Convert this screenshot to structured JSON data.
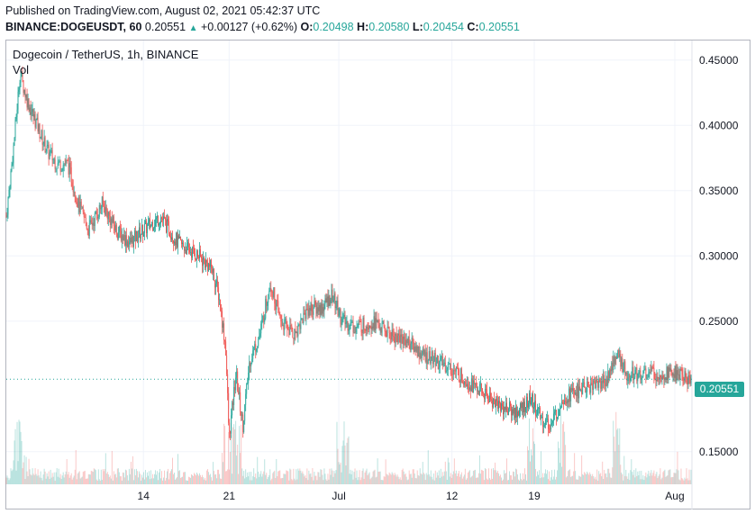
{
  "header": {
    "published": "Published on TradingView.com, August 02, 2021 05:42:37 UTC",
    "symbol": "BINANCE:DOGEUSDT, 60",
    "last": "0.20551",
    "change_icon": "triangle-up-icon",
    "change": "+0.00127 (+0.62%)",
    "o_label": "O:",
    "o_value": "0.20498",
    "h_label": "H:",
    "h_value": "0.20580",
    "l_label": "L:",
    "l_value": "0.20454",
    "c_label": "C:",
    "c_value": "0.20551"
  },
  "legend": {
    "title": "Dogecoin / TetherUS, 1h, BINANCE",
    "vol": "Vol"
  },
  "colors": {
    "up": "#26a69a",
    "down": "#ef5350",
    "grid": "#f0f3fa"
  },
  "chart_data": {
    "type": "candlestick",
    "title": "Dogecoin / TetherUS, 1h, BINANCE",
    "ylim": [
      0.125,
      0.465
    ],
    "y_ticks": [
      "0.45000",
      "0.40000",
      "0.35000",
      "0.30000",
      "0.25000",
      "0.15000"
    ],
    "y_tick_values": [
      0.45,
      0.4,
      0.35,
      0.3,
      0.25,
      0.15
    ],
    "x_ticks": [
      "14",
      "21",
      "Jul",
      "12",
      "19",
      "Aug"
    ],
    "x_tick_index": [
      0.2,
      0.325,
      0.485,
      0.65,
      0.77,
      0.975
    ],
    "last_price": "0.20551",
    "last_price_value": 0.20551,
    "price_path": [
      [
        0.0,
        0.33
      ],
      [
        0.01,
        0.38
      ],
      [
        0.02,
        0.44
      ],
      [
        0.03,
        0.42
      ],
      [
        0.045,
        0.4
      ],
      [
        0.06,
        0.38
      ],
      [
        0.075,
        0.37
      ],
      [
        0.09,
        0.37
      ],
      [
        0.105,
        0.34
      ],
      [
        0.12,
        0.32
      ],
      [
        0.14,
        0.34
      ],
      [
        0.16,
        0.32
      ],
      [
        0.18,
        0.31
      ],
      [
        0.2,
        0.32
      ],
      [
        0.225,
        0.33
      ],
      [
        0.25,
        0.31
      ],
      [
        0.28,
        0.3
      ],
      [
        0.3,
        0.29
      ],
      [
        0.31,
        0.27
      ],
      [
        0.32,
        0.23
      ],
      [
        0.325,
        0.16
      ],
      [
        0.335,
        0.21
      ],
      [
        0.345,
        0.17
      ],
      [
        0.355,
        0.22
      ],
      [
        0.37,
        0.24
      ],
      [
        0.385,
        0.28
      ],
      [
        0.4,
        0.25
      ],
      [
        0.42,
        0.24
      ],
      [
        0.44,
        0.26
      ],
      [
        0.46,
        0.26
      ],
      [
        0.475,
        0.27
      ],
      [
        0.49,
        0.25
      ],
      [
        0.51,
        0.245
      ],
      [
        0.535,
        0.25
      ],
      [
        0.56,
        0.24
      ],
      [
        0.585,
        0.235
      ],
      [
        0.605,
        0.225
      ],
      [
        0.625,
        0.22
      ],
      [
        0.645,
        0.215
      ],
      [
        0.67,
        0.205
      ],
      [
        0.695,
        0.195
      ],
      [
        0.72,
        0.185
      ],
      [
        0.745,
        0.18
      ],
      [
        0.765,
        0.19
      ],
      [
        0.78,
        0.175
      ],
      [
        0.795,
        0.17
      ],
      [
        0.81,
        0.19
      ],
      [
        0.825,
        0.195
      ],
      [
        0.85,
        0.2
      ],
      [
        0.875,
        0.205
      ],
      [
        0.89,
        0.225
      ],
      [
        0.905,
        0.21
      ],
      [
        0.93,
        0.21
      ],
      [
        0.955,
        0.21
      ],
      [
        0.975,
        0.21
      ],
      [
        1.0,
        0.205
      ]
    ]
  }
}
